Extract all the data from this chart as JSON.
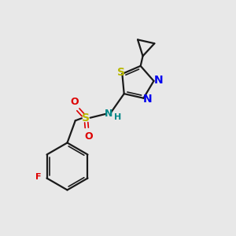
{
  "background_color": "#e8e8e8",
  "bond_color": "#1a1a1a",
  "sulfur_color": "#b8b800",
  "nitrogen_color": "#0000ee",
  "oxygen_color": "#dd0000",
  "fluorine_color": "#dd0000",
  "nh_color": "#008888",
  "figsize": [
    3.0,
    3.0
  ],
  "dpi": 100,
  "xlim": [
    0,
    10
  ],
  "ylim": [
    0,
    10
  ]
}
